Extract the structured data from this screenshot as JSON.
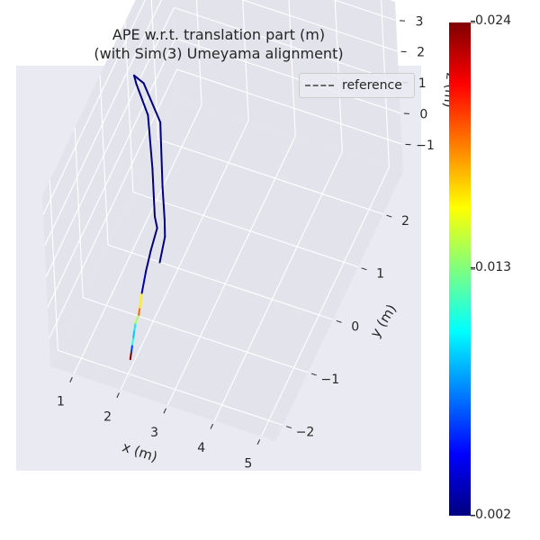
{
  "chart_data": {
    "type": "line",
    "projection": "3d",
    "title": "APE w.r.t. translation part (m)",
    "subtitle": "(with Sim(3) Umeyama alignment)",
    "xlabel": "x (m)",
    "ylabel": "y (m)",
    "zlabel": "z (m)",
    "xlim": [
      0.5,
      5.3
    ],
    "ylim": [
      -2.3,
      2.8
    ],
    "zlim": [
      -1.9,
      3.6
    ],
    "x_ticks": [
      "1",
      "2",
      "3",
      "4",
      "5"
    ],
    "y_ticks": [
      "−2",
      "−1",
      "0",
      "1",
      "2"
    ],
    "z_ticks": [
      "−1",
      "0",
      "1",
      "2",
      "3"
    ],
    "grid": true,
    "legend": {
      "position": "top-right",
      "entries": [
        "reference"
      ]
    },
    "colorbar": {
      "colormap": "jet",
      "min": 0.002,
      "max": 0.024,
      "tick_labels": [
        "0.024",
        "0.013",
        "0.002"
      ],
      "tick_values": [
        0.024,
        0.013,
        0.002
      ]
    },
    "series": [
      {
        "style": "colored-by-error",
        "points": [
          {
            "x": 2.0,
            "y": -1.9,
            "z": -1.6,
            "err": 0.024
          },
          {
            "x": 2.0,
            "y": -1.85,
            "z": -1.45,
            "err": 0.006
          },
          {
            "x": 2.0,
            "y": -1.8,
            "z": -1.3,
            "err": 0.011
          },
          {
            "x": 2.0,
            "y": -1.75,
            "z": -1.15,
            "err": 0.009
          },
          {
            "x": 2.0,
            "y": -1.7,
            "z": -1.0,
            "err": 0.01
          },
          {
            "x": 2.0,
            "y": -1.65,
            "z": -0.85,
            "err": 0.014
          },
          {
            "x": 2.05,
            "y": -1.6,
            "z": -0.65,
            "err": 0.019
          },
          {
            "x": 2.05,
            "y": -1.55,
            "z": -0.5,
            "err": 0.016
          },
          {
            "x": 2.05,
            "y": -1.45,
            "z": -0.2,
            "err": 0.003
          },
          {
            "x": 2.1,
            "y": -1.35,
            "z": 0.35,
            "err": 0.002
          },
          {
            "x": 2.2,
            "y": -1.3,
            "z": 1.0,
            "err": 0.002
          },
          {
            "x": 2.3,
            "y": -1.2,
            "z": 1.6,
            "err": 0.002
          },
          {
            "x": 2.2,
            "y": -1.1,
            "z": 1.75,
            "err": 0.002
          },
          {
            "x": 1.9,
            "y": -0.6,
            "z": 2.3,
            "err": 0.002
          },
          {
            "x": 1.5,
            "y": 0.0,
            "z": 2.8,
            "err": 0.002
          },
          {
            "x": 1.1,
            "y": 0.3,
            "z": 3.1,
            "err": 0.002
          },
          {
            "x": 1.0,
            "y": 0.4,
            "z": 3.15,
            "err": 0.002
          },
          {
            "x": 1.2,
            "y": 0.4,
            "z": 3.0,
            "err": 0.002
          },
          {
            "x": 1.7,
            "y": 0.1,
            "z": 2.5,
            "err": 0.002
          },
          {
            "x": 2.1,
            "y": -0.6,
            "z": 1.8,
            "err": 0.002
          },
          {
            "x": 2.35,
            "y": -1.0,
            "z": 1.55,
            "err": 0.002
          },
          {
            "x": 2.4,
            "y": -1.1,
            "z": 1.2,
            "err": 0.002
          },
          {
            "x": 2.35,
            "y": -1.25,
            "z": 0.6,
            "err": 0.002
          }
        ]
      }
    ]
  }
}
